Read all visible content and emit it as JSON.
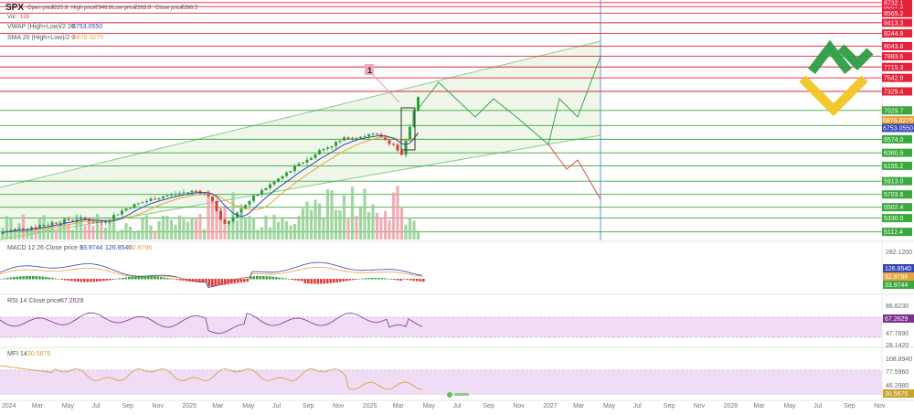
{
  "header": {
    "symbol": "SPX",
    "open_label": "Open price:",
    "open_value": "7225.8",
    "high_label": "High price:",
    "high_value": "7346.8",
    "low_label": "Low price:",
    "low_value": "7263.8",
    "close_label": "Close price:",
    "close_value": "7286.5",
    "vol_label": "Vol:",
    "vol_value": "155",
    "vwap_label": "VWAP (High+Low)/2 20",
    "vwap_value": "6753.0550",
    "sma_label": "SMA 20 (High+Low)/2 0",
    "sma_value": "6876.3275"
  },
  "colors": {
    "resistance": "#e8203a",
    "support": "#3aa83a",
    "channel": "#8dc98d",
    "channel_fill": "#eef7ea",
    "bull": "#2e9e3e",
    "bear": "#e23b3b",
    "sma": "#e9a23b",
    "vwap": "#3247b5",
    "rsi": "#7b2f8f",
    "mfi": "#c9a227",
    "osc_fill": "#f1dcf5"
  },
  "chart_data": {
    "type": "candlestick",
    "x": [
      "2024",
      "Mar",
      "May",
      "Jul",
      "Sep",
      "Nov",
      "2025",
      "Mar",
      "May",
      "Jul",
      "Sep",
      "Nov",
      "2026",
      "Mar",
      "May",
      "Jul",
      "Sep",
      "Nov",
      "2027",
      "Mar",
      "May",
      "Jul",
      "Sep",
      "Nov",
      "2028",
      "Mar",
      "May",
      "Jul",
      "Sep",
      "Nov"
    ],
    "price_ylim": [
      5050,
      8700
    ],
    "resistance_levels": [
      "8667.9",
      "8732.1",
      "8565.2",
      "8413.3",
      "8244.9",
      "8043.8",
      "7883.6",
      "7715.3",
      "7542.9",
      "7329.4"
    ],
    "support_levels": [
      "7029.7",
      "6791.6",
      "6574.0",
      "6360.5",
      "6155.2",
      "5913.0",
      "5703.6",
      "5502.4",
      "5330.0",
      "5112.4"
    ],
    "indicator_tags": [
      {
        "label": "6876.3275",
        "color": "#e9a23b"
      },
      {
        "label": "6753.0550",
        "color": "#3247b5"
      }
    ],
    "annotation": "1",
    "macd": {
      "label": "MACD 12 26 Close price 9",
      "v1": "33.9744",
      "v2": "126.8540",
      "v3": "92.8796",
      "axis": [
        "282.1200",
        "126.8540",
        "92.8796",
        "33.9744"
      ]
    },
    "rsi": {
      "label": "RSI 14 Close price",
      "value": "67.2629",
      "axis": [
        "86.8230",
        "67.2629",
        "47.7690",
        "28.1420"
      ]
    },
    "mfi": {
      "label": "MFI 14",
      "value": "30.5675",
      "axis": [
        "108.8940",
        "77.5960",
        "46.2980",
        "30.5675"
      ]
    }
  }
}
